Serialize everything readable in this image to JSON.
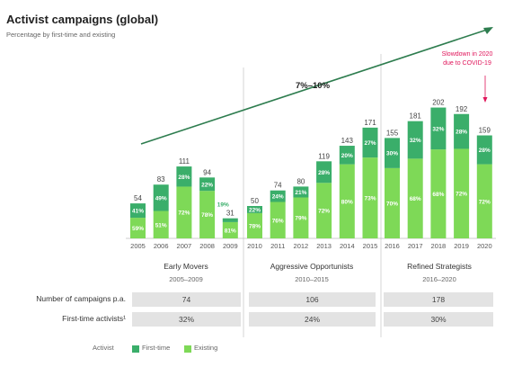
{
  "title": "Activist campaigns (global)",
  "subtitle": "Percentage by first-time and existing",
  "colors": {
    "first_time": "#3aae6a",
    "existing": "#7ed957",
    "trend": "#2e7d4f",
    "callout": "#e0155a",
    "divider": "#cccccc",
    "cell_bg": "#e3e3e3"
  },
  "chart_data": {
    "type": "bar",
    "categories": [
      "2005",
      "2006",
      "2007",
      "2008",
      "2009",
      "2010",
      "2011",
      "2012",
      "2013",
      "2014",
      "2015",
      "2016",
      "2017",
      "2018",
      "2019",
      "2020"
    ],
    "totals": [
      54,
      83,
      111,
      94,
      31,
      50,
      74,
      80,
      119,
      143,
      171,
      155,
      181,
      202,
      192,
      159
    ],
    "series": [
      {
        "name": "First-time",
        "values_pct": [
          "41%",
          "49%",
          "28%",
          "22%",
          "19%",
          "22%",
          "24%",
          "21%",
          "28%",
          "20%",
          "27%",
          "30%",
          "32%",
          "32%",
          "28%",
          "28%"
        ]
      },
      {
        "name": "Existing",
        "values_pct": [
          "59%",
          "51%",
          "72%",
          "78%",
          "81%",
          "78%",
          "76%",
          "79%",
          "72%",
          "80%",
          "73%",
          "70%",
          "68%",
          "68%",
          "72%",
          "72%"
        ]
      }
    ],
    "trend_label": "7%–10%",
    "callout": "Slowdown in 2020\ndue to COVID-19",
    "ylim": [
      0,
      300
    ]
  },
  "phases": [
    {
      "name": "Early Movers",
      "years": "2005–2009",
      "campaigns": "74",
      "first_time": "32%"
    },
    {
      "name": "Aggressive Opportunists",
      "years": "2010–2015",
      "campaigns": "106",
      "first_time": "24%"
    },
    {
      "name": "Refined Strategists",
      "years": "2016–2020",
      "campaigns": "178",
      "first_time": "30%"
    }
  ],
  "row_labels": {
    "campaigns": "Number of campaigns p.a.",
    "first_time": "First-time activists¹"
  },
  "legend": {
    "title": "Activist",
    "first_time": "First-time",
    "existing": "Existing"
  }
}
